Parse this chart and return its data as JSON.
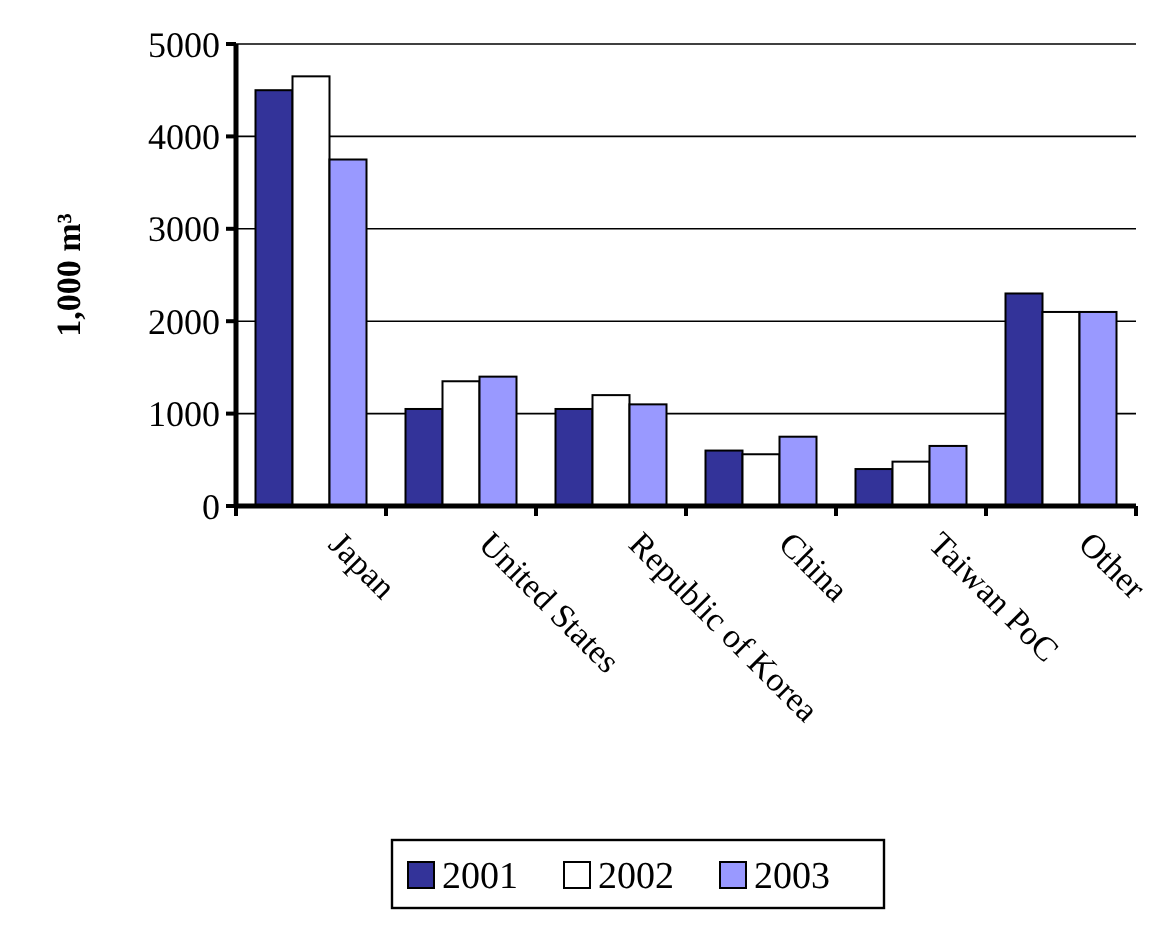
{
  "chart_data": {
    "type": "bar",
    "ylabel": "1,000 m³",
    "categories": [
      "Japan",
      "United States",
      "Republic of Korea",
      "China",
      "Taiwan PoC",
      "Other"
    ],
    "series": [
      {
        "name": "2001",
        "color": "#333399",
        "values": [
          4500,
          1050,
          1050,
          600,
          400,
          2300
        ]
      },
      {
        "name": "2002",
        "color": "#ffffff",
        "values": [
          4650,
          1350,
          1200,
          560,
          480,
          2100
        ]
      },
      {
        "name": "2003",
        "color": "#9999ff",
        "values": [
          3750,
          1400,
          1100,
          750,
          650,
          2100
        ]
      }
    ],
    "ylim": [
      0,
      5000
    ],
    "yticks": [
      0,
      1000,
      2000,
      3000,
      4000,
      5000
    ],
    "grid": "y",
    "legend": "bottom"
  }
}
